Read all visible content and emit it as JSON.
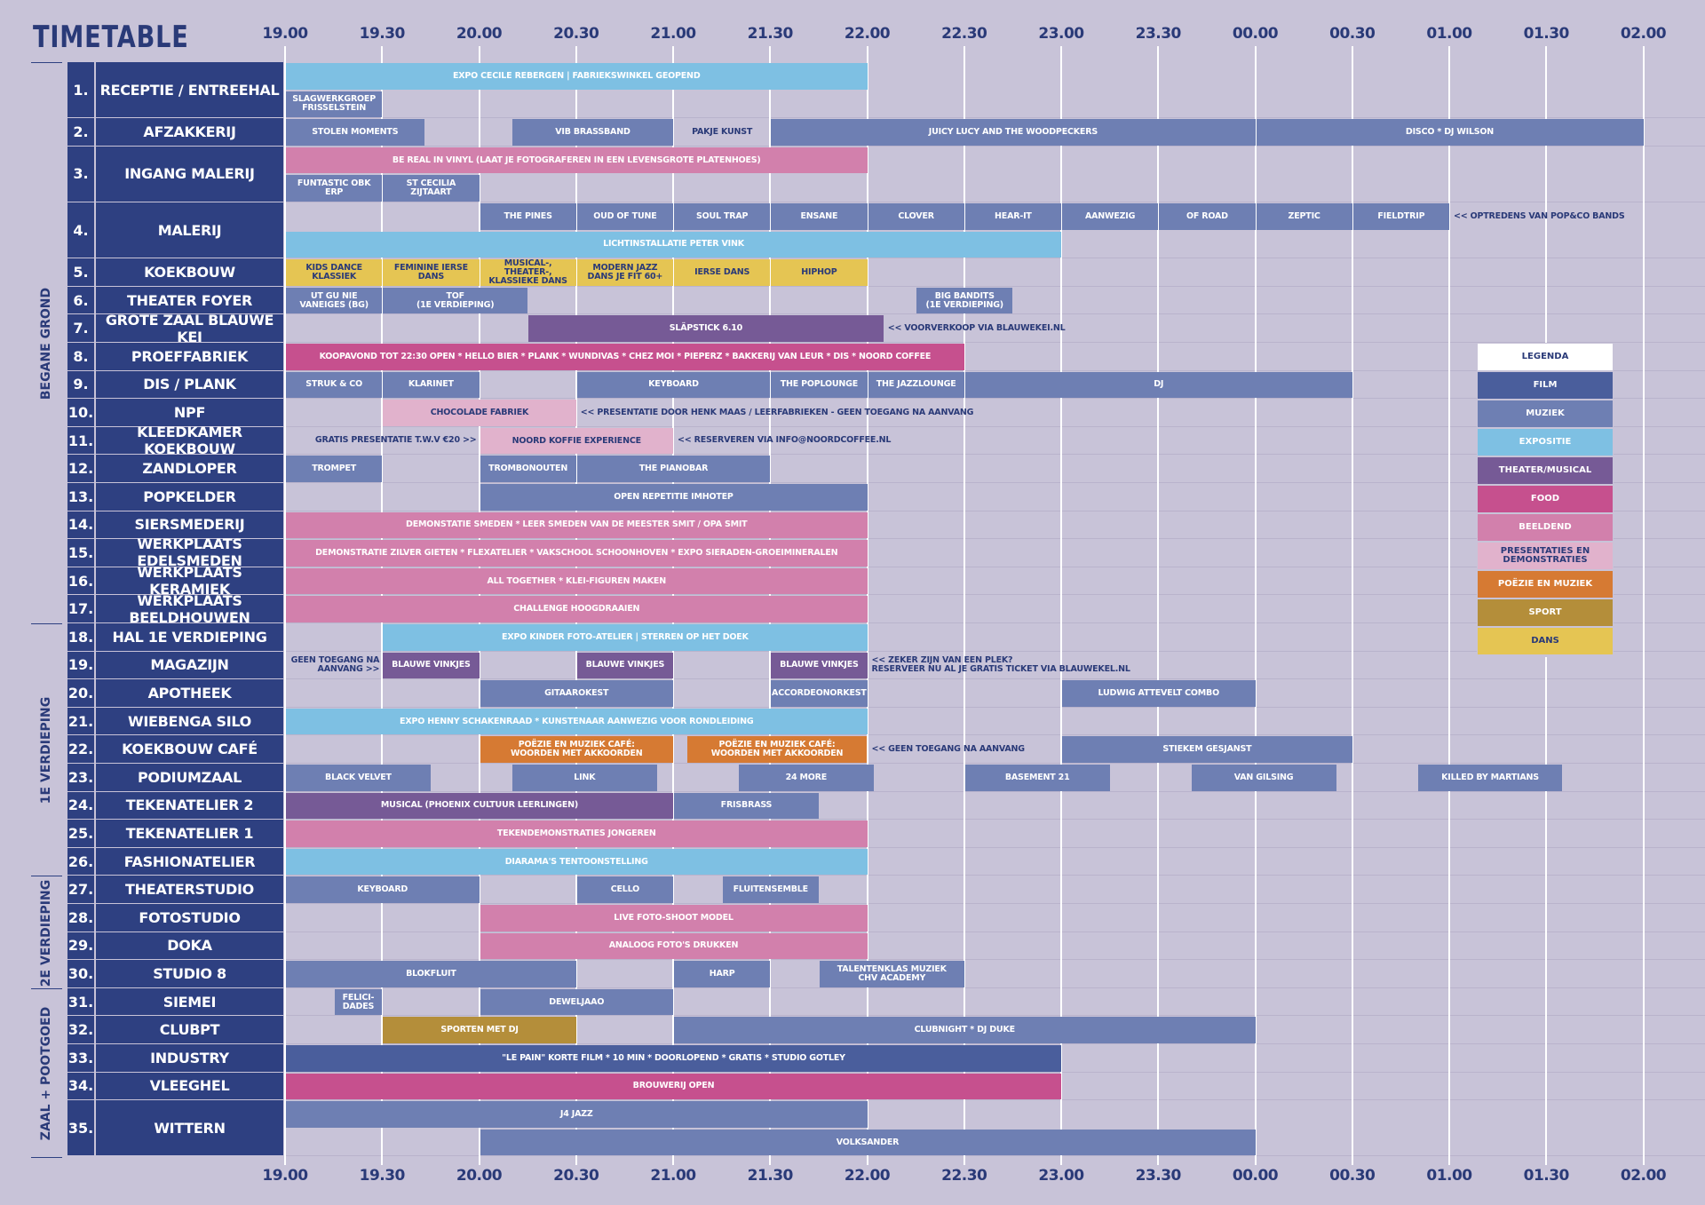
{
  "title": "TIMETABLE",
  "times": [
    "19.00",
    "19.30",
    "20.00",
    "20.30",
    "21.00",
    "21.30",
    "22.00",
    "22.30",
    "23.00",
    "23.30",
    "00.00",
    "00.30",
    "01.00",
    "01.30",
    "02.00"
  ],
  "colors": {
    "film": "#4a5e9c",
    "muziek": "#6e7fb3",
    "expositie": "#7ec0e3",
    "theater": "#765a96",
    "food": "#c6508e",
    "beeldend": "#d280ac",
    "presentaties": "#e1b2cc",
    "poezie": "#d67a33",
    "sport": "#b48e3a",
    "dans": "#e5c553",
    "header": "#2e4081"
  },
  "sections": [
    {
      "label": "BEGANE GROND",
      "first": 1,
      "last": 17
    },
    {
      "label": "1E VERDIEPING",
      "first": 18,
      "last": 26
    },
    {
      "label": "2E VERDIEPING",
      "first": 27,
      "last": 30
    },
    {
      "label": "ZAAL + POOTGOED",
      "first": 31,
      "last": 35
    }
  ],
  "rows": [
    {
      "num": "1.",
      "name": "RECEPTIE / ENTREEHAL",
      "lanes": 2
    },
    {
      "num": "2.",
      "name": "AFZAKKERIJ",
      "lanes": 1
    },
    {
      "num": "3.",
      "name": "INGANG MALERIJ",
      "lanes": 2
    },
    {
      "num": "4.",
      "name": "MALERIJ",
      "lanes": 2
    },
    {
      "num": "5.",
      "name": "KOEKBOUW",
      "lanes": 1
    },
    {
      "num": "6.",
      "name": "THEATER FOYER",
      "lanes": 1
    },
    {
      "num": "7.",
      "name": "GROTE ZAAL BLAUWE KEI",
      "lanes": 1
    },
    {
      "num": "8.",
      "name": "PROEFFABRIEK",
      "lanes": 1
    },
    {
      "num": "9.",
      "name": "DIS / PLANK",
      "lanes": 1
    },
    {
      "num": "10.",
      "name": "NPF",
      "lanes": 1
    },
    {
      "num": "11.",
      "name": "KLEEDKAMER KOEKBOUW",
      "lanes": 1
    },
    {
      "num": "12.",
      "name": "ZANDLOPER",
      "lanes": 1
    },
    {
      "num": "13.",
      "name": "POPKELDER",
      "lanes": 1
    },
    {
      "num": "14.",
      "name": "SIERSMEDERIJ",
      "lanes": 1
    },
    {
      "num": "15.",
      "name": "WERKPLAATS EDELSMEDEN",
      "lanes": 1
    },
    {
      "num": "16.",
      "name": "WERKPLAATS KERAMIEK",
      "lanes": 1
    },
    {
      "num": "17.",
      "name": "WERKPLAATS BEELDHOUWEN",
      "lanes": 1
    },
    {
      "num": "18.",
      "name": "HAL 1E VERDIEPING",
      "lanes": 1
    },
    {
      "num": "19.",
      "name": "MAGAZIJN",
      "lanes": 1
    },
    {
      "num": "20.",
      "name": "APOTHEEK",
      "lanes": 1
    },
    {
      "num": "21.",
      "name": "WIEBENGA SILO",
      "lanes": 1
    },
    {
      "num": "22.",
      "name": "KOEKBOUW CAFÉ",
      "lanes": 1
    },
    {
      "num": "23.",
      "name": "PODIUMZAAL",
      "lanes": 1
    },
    {
      "num": "24.",
      "name": "TEKENATELIER 2",
      "lanes": 1
    },
    {
      "num": "25.",
      "name": "TEKENATELIER 1",
      "lanes": 1
    },
    {
      "num": "26.",
      "name": "FASHIONATELIER",
      "lanes": 1
    },
    {
      "num": "27.",
      "name": "THEATERSTUDIO",
      "lanes": 1
    },
    {
      "num": "28.",
      "name": "FOTOSTUDIO",
      "lanes": 1
    },
    {
      "num": "29.",
      "name": "DOKA",
      "lanes": 1
    },
    {
      "num": "30.",
      "name": "STUDIO 8",
      "lanes": 1
    },
    {
      "num": "31.",
      "name": "SIEMEI",
      "lanes": 1
    },
    {
      "num": "32.",
      "name": "CLUBPT",
      "lanes": 1
    },
    {
      "num": "33.",
      "name": "INDUSTRY",
      "lanes": 1
    },
    {
      "num": "34.",
      "name": "VLEEGHEL",
      "lanes": 1
    },
    {
      "num": "35.",
      "name": "WITTERN",
      "lanes": 2
    }
  ],
  "events": [
    {
      "row": 1,
      "lane": 0,
      "start": "19:00",
      "end": "22:00",
      "cat": "expositie",
      "label": "EXPO CECILE REBERGEN | FABRIEKSWINKEL GEOPEND"
    },
    {
      "row": 1,
      "lane": 1,
      "start": "19:00",
      "end": "19:30",
      "cat": "muziek",
      "label": "SLAGWERKGROEP\nFRISSELSTEIN"
    },
    {
      "row": 2,
      "lane": 0,
      "start": "19:00",
      "end": "19:43",
      "cat": "muziek",
      "label": "STOLEN MOMENTS"
    },
    {
      "row": 2,
      "lane": 0,
      "start": "20:10",
      "end": "21:00",
      "cat": "muziek",
      "label": "VIB BRASSBAND"
    },
    {
      "row": 2,
      "lane": 0,
      "start": "21:00",
      "end": "21:30",
      "cat": "none",
      "label": "PAKJE KUNST"
    },
    {
      "row": 2,
      "lane": 0,
      "start": "21:30",
      "end": "00:00",
      "cat": "muziek",
      "label": "JUICY LUCY AND THE WOODPECKERS"
    },
    {
      "row": 2,
      "lane": 0,
      "start": "00:00",
      "end": "02:00",
      "cat": "muziek",
      "label": "DISCO * DJ WILSON"
    },
    {
      "row": 3,
      "lane": 0,
      "start": "19:00",
      "end": "22:00",
      "cat": "beeldend",
      "label": "BE REAL IN VINYL (LAAT JE FOTOGRAFEREN IN EEN LEVENSGROTE PLATENHOES)"
    },
    {
      "row": 3,
      "lane": 1,
      "start": "19:00",
      "end": "19:30",
      "cat": "muziek",
      "label": "FUNTASTIC OBK ERP"
    },
    {
      "row": 3,
      "lane": 1,
      "start": "19:30",
      "end": "20:00",
      "cat": "muziek",
      "label": "ST CECILIA ZIJTAART"
    },
    {
      "row": 4,
      "lane": 0,
      "start": "20:00",
      "end": "20:30",
      "cat": "muziek",
      "label": "THE PINES"
    },
    {
      "row": 4,
      "lane": 0,
      "start": "20:30",
      "end": "21:00",
      "cat": "muziek",
      "label": "OUD OF TUNE"
    },
    {
      "row": 4,
      "lane": 0,
      "start": "21:00",
      "end": "21:30",
      "cat": "muziek",
      "label": "SOUL TRAP"
    },
    {
      "row": 4,
      "lane": 0,
      "start": "21:30",
      "end": "22:00",
      "cat": "muziek",
      "label": "ENSANE"
    },
    {
      "row": 4,
      "lane": 0,
      "start": "22:00",
      "end": "22:30",
      "cat": "muziek",
      "label": "CLOVER"
    },
    {
      "row": 4,
      "lane": 0,
      "start": "22:30",
      "end": "23:00",
      "cat": "muziek",
      "label": "HEAR-IT"
    },
    {
      "row": 4,
      "lane": 0,
      "start": "23:00",
      "end": "23:30",
      "cat": "muziek",
      "label": "AANWEZIG"
    },
    {
      "row": 4,
      "lane": 0,
      "start": "23:30",
      "end": "00:00",
      "cat": "muziek",
      "label": "OF ROAD"
    },
    {
      "row": 4,
      "lane": 0,
      "start": "00:00",
      "end": "00:30",
      "cat": "muziek",
      "label": "ZEPTIC"
    },
    {
      "row": 4,
      "lane": 0,
      "start": "00:30",
      "end": "01:00",
      "cat": "muziek",
      "label": "FIELDTRIP"
    },
    {
      "row": 4,
      "lane": 1,
      "start": "19:00",
      "end": "23:00",
      "cat": "expositie",
      "label": "LICHTINSTALLATIE PETER VINK"
    },
    {
      "row": 5,
      "lane": 0,
      "start": "19:00",
      "end": "19:30",
      "cat": "dans",
      "label": "KIDS DANCE KLASSIEK"
    },
    {
      "row": 5,
      "lane": 0,
      "start": "19:30",
      "end": "20:00",
      "cat": "dans",
      "label": "FEMININE IERSE DANS"
    },
    {
      "row": 5,
      "lane": 0,
      "start": "20:00",
      "end": "20:30",
      "cat": "dans",
      "label": "MUSICAL-, THEATER-,\nKLASSIEKE DANS"
    },
    {
      "row": 5,
      "lane": 0,
      "start": "20:30",
      "end": "21:00",
      "cat": "dans",
      "label": "MODERN JAZZ\nDANS JE FIT 60+"
    },
    {
      "row": 5,
      "lane": 0,
      "start": "21:00",
      "end": "21:30",
      "cat": "dans",
      "label": "IERSE DANS"
    },
    {
      "row": 5,
      "lane": 0,
      "start": "21:30",
      "end": "22:00",
      "cat": "dans",
      "label": "HIPHOP"
    },
    {
      "row": 6,
      "lane": 0,
      "start": "19:00",
      "end": "19:30",
      "cat": "muziek",
      "label": "UT GU NIE\nVANEIGES (BG)"
    },
    {
      "row": 6,
      "lane": 0,
      "start": "19:30",
      "end": "20:15",
      "cat": "muziek",
      "label": "TOF\n(1E VERDIEPING)"
    },
    {
      "row": 6,
      "lane": 0,
      "start": "22:15",
      "end": "22:45",
      "cat": "muziek",
      "label": "BIG BANDITS\n(1E VERDIEPING)"
    },
    {
      "row": 7,
      "lane": 0,
      "start": "20:15",
      "end": "22:05",
      "cat": "theater",
      "label": "SLÄPSTICK 6.10"
    },
    {
      "row": 8,
      "lane": 0,
      "start": "19:00",
      "end": "22:30",
      "cat": "food",
      "label": "KOOPAVOND TOT 22:30 OPEN * HELLO BIER * PLANK * WUNDIVAS * CHEZ MOI * PIEPERZ * BAKKERIJ VAN LEUR * DIS * NOORD COFFEE"
    },
    {
      "row": 9,
      "lane": 0,
      "start": "19:00",
      "end": "19:30",
      "cat": "muziek",
      "label": "STRUK & CO"
    },
    {
      "row": 9,
      "lane": 0,
      "start": "19:30",
      "end": "20:00",
      "cat": "muziek",
      "label": "KLARINET"
    },
    {
      "row": 9,
      "lane": 0,
      "start": "20:30",
      "end": "21:30",
      "cat": "muziek",
      "label": "KEYBOARD"
    },
    {
      "row": 9,
      "lane": 0,
      "start": "21:30",
      "end": "22:00",
      "cat": "muziek",
      "label": "THE POPLOUNGE"
    },
    {
      "row": 9,
      "lane": 0,
      "start": "22:00",
      "end": "22:30",
      "cat": "muziek",
      "label": "THE JAZZLOUNGE"
    },
    {
      "row": 9,
      "lane": 0,
      "start": "22:30",
      "end": "00:30",
      "cat": "muziek",
      "label": "DJ"
    },
    {
      "row": 10,
      "lane": 0,
      "start": "19:30",
      "end": "20:30",
      "cat": "presentaties",
      "label": "CHOCOLADE FABRIEK"
    },
    {
      "row": 11,
      "lane": 0,
      "start": "20:00",
      "end": "21:00",
      "cat": "presentaties",
      "label": "NOORD KOFFIE EXPERIENCE"
    },
    {
      "row": 12,
      "lane": 0,
      "start": "19:00",
      "end": "19:30",
      "cat": "muziek",
      "label": "TROMPET"
    },
    {
      "row": 12,
      "lane": 0,
      "start": "20:00",
      "end": "20:30",
      "cat": "muziek",
      "label": "TROMBONOUTEN"
    },
    {
      "row": 12,
      "lane": 0,
      "start": "20:30",
      "end": "21:30",
      "cat": "muziek",
      "label": "THE PIANOBAR"
    },
    {
      "row": 13,
      "lane": 0,
      "start": "20:00",
      "end": "22:00",
      "cat": "muziek",
      "label": "OPEN REPETITIE IMHOTEP"
    },
    {
      "row": 14,
      "lane": 0,
      "start": "19:00",
      "end": "22:00",
      "cat": "beeldend",
      "label": "DEMONSTATIE SMEDEN * LEER SMEDEN VAN DE MEESTER SMIT / OPA SMIT"
    },
    {
      "row": 15,
      "lane": 0,
      "start": "19:00",
      "end": "22:00",
      "cat": "beeldend",
      "label": "DEMONSTRATIE ZILVER GIETEN * FLEXATELIER * VAKSCHOOL SCHOONHOVEN * EXPO SIERADEN-GROEIMINERALEN"
    },
    {
      "row": 16,
      "lane": 0,
      "start": "19:00",
      "end": "22:00",
      "cat": "beeldend",
      "label": "ALL TOGETHER * KLEI-FIGUREN MAKEN"
    },
    {
      "row": 17,
      "lane": 0,
      "start": "19:00",
      "end": "22:00",
      "cat": "beeldend",
      "label": "CHALLENGE HOOGDRAAIEN"
    },
    {
      "row": 18,
      "lane": 0,
      "start": "19:30",
      "end": "22:00",
      "cat": "expositie",
      "label": "EXPO KINDER FOTO-ATELIER | STERREN OP HET DOEK"
    },
    {
      "row": 19,
      "lane": 0,
      "start": "19:30",
      "end": "20:00",
      "cat": "theater",
      "label": "BLAUWE VINKJES"
    },
    {
      "row": 19,
      "lane": 0,
      "start": "20:30",
      "end": "21:00",
      "cat": "theater",
      "label": "BLAUWE VINKJES"
    },
    {
      "row": 19,
      "lane": 0,
      "start": "21:30",
      "end": "22:00",
      "cat": "theater",
      "label": "BLAUWE VINKJES"
    },
    {
      "row": 20,
      "lane": 0,
      "start": "20:00",
      "end": "21:00",
      "cat": "muziek",
      "label": "GITAAROKEST"
    },
    {
      "row": 20,
      "lane": 0,
      "start": "21:30",
      "end": "22:00",
      "cat": "muziek",
      "label": "ACCORDEONORKEST"
    },
    {
      "row": 20,
      "lane": 0,
      "start": "23:00",
      "end": "00:00",
      "cat": "muziek",
      "label": "LUDWIG ATTEVELT COMBO"
    },
    {
      "row": 21,
      "lane": 0,
      "start": "19:00",
      "end": "22:00",
      "cat": "expositie",
      "label": "EXPO HENNY SCHAKENRAAD * KUNSTENAAR AANWEZIG VOOR RONDLEIDING"
    },
    {
      "row": 22,
      "lane": 0,
      "start": "20:00",
      "end": "21:00",
      "cat": "poezie",
      "label": "POËZIE EN MUZIEK CAFÉ:\nWOORDEN MET AKKOORDEN"
    },
    {
      "row": 22,
      "lane": 0,
      "start": "21:04",
      "end": "22:00",
      "cat": "poezie",
      "label": "POËZIE EN MUZIEK CAFÉ:\nWOORDEN MET AKKOORDEN"
    },
    {
      "row": 22,
      "lane": 0,
      "start": "23:00",
      "end": "00:30",
      "cat": "muziek",
      "label": "STIEKEM GESJANST"
    },
    {
      "row": 23,
      "lane": 0,
      "start": "19:00",
      "end": "19:45",
      "cat": "muziek",
      "label": "BLACK VELVET"
    },
    {
      "row": 23,
      "lane": 0,
      "start": "20:10",
      "end": "20:55",
      "cat": "muziek",
      "label": "LINK"
    },
    {
      "row": 23,
      "lane": 0,
      "start": "21:20",
      "end": "22:02",
      "cat": "muziek",
      "label": "24 MORE"
    },
    {
      "row": 23,
      "lane": 0,
      "start": "22:30",
      "end": "23:15",
      "cat": "muziek",
      "label": "BASEMENT 21"
    },
    {
      "row": 23,
      "lane": 0,
      "start": "23:40",
      "end": "00:25",
      "cat": "muziek",
      "label": "VAN GILSING"
    },
    {
      "row": 23,
      "lane": 0,
      "start": "00:50",
      "end": "01:35",
      "cat": "muziek",
      "label": "KILLED BY MARTIANS"
    },
    {
      "row": 24,
      "lane": 0,
      "start": "19:00",
      "end": "21:00",
      "cat": "theater",
      "label": "MUSICAL (PHOENIX CULTUUR LEERLINGEN)"
    },
    {
      "row": 24,
      "lane": 0,
      "start": "21:00",
      "end": "21:45",
      "cat": "muziek",
      "label": "FRISBRASS"
    },
    {
      "row": 25,
      "lane": 0,
      "start": "19:00",
      "end": "22:00",
      "cat": "beeldend",
      "label": "TEKENDEMONSTRATIES JONGEREN"
    },
    {
      "row": 26,
      "lane": 0,
      "start": "19:00",
      "end": "22:00",
      "cat": "expositie",
      "label": "DIARAMA'S TENTOONSTELLING"
    },
    {
      "row": 27,
      "lane": 0,
      "start": "19:00",
      "end": "20:00",
      "cat": "muziek",
      "label": "KEYBOARD"
    },
    {
      "row": 27,
      "lane": 0,
      "start": "20:30",
      "end": "21:00",
      "cat": "muziek",
      "label": "CELLO"
    },
    {
      "row": 27,
      "lane": 0,
      "start": "21:15",
      "end": "21:45",
      "cat": "muziek",
      "label": "FLUITENSEMBLE"
    },
    {
      "row": 28,
      "lane": 0,
      "start": "20:00",
      "end": "22:00",
      "cat": "beeldend",
      "label": "LIVE FOTO-SHOOT MODEL"
    },
    {
      "row": 29,
      "lane": 0,
      "start": "20:00",
      "end": "22:00",
      "cat": "beeldend",
      "label": "ANALOOG FOTO'S DRUKKEN"
    },
    {
      "row": 30,
      "lane": 0,
      "start": "19:00",
      "end": "20:30",
      "cat": "muziek",
      "label": "BLOKFLUIT"
    },
    {
      "row": 30,
      "lane": 0,
      "start": "21:00",
      "end": "21:30",
      "cat": "muziek",
      "label": "HARP"
    },
    {
      "row": 30,
      "lane": 0,
      "start": "21:45",
      "end": "22:30",
      "cat": "muziek",
      "label": "TALENTENKLAS MUZIEK\nCHV ACADEMY"
    },
    {
      "row": 31,
      "lane": 0,
      "start": "19:15",
      "end": "19:30",
      "cat": "muziek",
      "label": "FELICI-\nDADES"
    },
    {
      "row": 31,
      "lane": 0,
      "start": "20:00",
      "end": "21:00",
      "cat": "muziek",
      "label": "DEWELJAAO"
    },
    {
      "row": 32,
      "lane": 0,
      "start": "19:30",
      "end": "20:30",
      "cat": "sport",
      "label": "SPORTEN MET DJ"
    },
    {
      "row": 32,
      "lane": 0,
      "start": "21:00",
      "end": "00:00",
      "cat": "muziek",
      "label": "CLUBNIGHT * DJ DUKE"
    },
    {
      "row": 33,
      "lane": 0,
      "start": "19:00",
      "end": "23:00",
      "cat": "film",
      "label": "\"LE PAIN\" KORTE FILM * 10 MIN * DOORLOPEND * GRATIS * STUDIO GOTLEY"
    },
    {
      "row": 34,
      "lane": 0,
      "start": "19:00",
      "end": "23:00",
      "cat": "food",
      "label": "BROUWERIJ OPEN"
    },
    {
      "row": 35,
      "lane": 0,
      "start": "19:00",
      "end": "22:00",
      "cat": "muziek",
      "label": "J4 JAZZ"
    },
    {
      "row": 35,
      "lane": 1,
      "start": "20:00",
      "end": "00:00",
      "cat": "muziek",
      "label": "VOLKSANDER"
    }
  ],
  "notes": [
    {
      "row": 4,
      "lane": 0,
      "time": "01:00",
      "align": "left",
      "text": "<< OPTREDENS VAN POP&CO BANDS"
    },
    {
      "row": 7,
      "lane": 0,
      "time": "22:05",
      "align": "left",
      "text": "<< VOORVERKOOP VIA BLAUWEKEI.NL"
    },
    {
      "row": 10,
      "lane": 0,
      "time": "20:30",
      "align": "left",
      "text": "<< PRESENTATIE DOOR HENK MAAS / LEERFABRIEKEN - GEEN TOEGANG NA AANVANG"
    },
    {
      "row": 11,
      "lane": 0,
      "time": "20:00",
      "align": "right",
      "text": "GRATIS PRESENTATIE T.W.V €20 >>"
    },
    {
      "row": 11,
      "lane": 0,
      "time": "21:00",
      "align": "left",
      "text": "<< RESERVEREN VIA INFO@NOORDCOFFEE.NL"
    },
    {
      "row": 19,
      "lane": 0,
      "time": "19:30",
      "align": "right",
      "text": "GEEN TOEGANG NA\nAANVANG >>"
    },
    {
      "row": 19,
      "lane": 0,
      "time": "22:00",
      "align": "left",
      "text": "<< ZEKER ZIJN VAN EEN PLEK?\nRESERVEER NU AL JE GRATIS TICKET VIA BLAUWEKEL.NL"
    },
    {
      "row": 22,
      "lane": 0,
      "time": "22:00",
      "align": "left",
      "text": "<< GEEN TOEGANG NA AANVANG"
    }
  ],
  "legend": {
    "title": "LEGENDA",
    "items": [
      {
        "label": "FILM",
        "cat": "film"
      },
      {
        "label": "MUZIEK",
        "cat": "muziek"
      },
      {
        "label": "EXPOSITIE",
        "cat": "expositie"
      },
      {
        "label": "THEATER/MUSICAL",
        "cat": "theater"
      },
      {
        "label": "FOOD",
        "cat": "food"
      },
      {
        "label": "BEELDEND",
        "cat": "beeldend"
      },
      {
        "label": "PRESENTATIES EN\nDEMONSTRATIES",
        "cat": "presentaties"
      },
      {
        "label": "POËZIE EN MUZIEK",
        "cat": "poezie"
      },
      {
        "label": "SPORT",
        "cat": "sport"
      },
      {
        "label": "DANS",
        "cat": "dans"
      }
    ]
  }
}
